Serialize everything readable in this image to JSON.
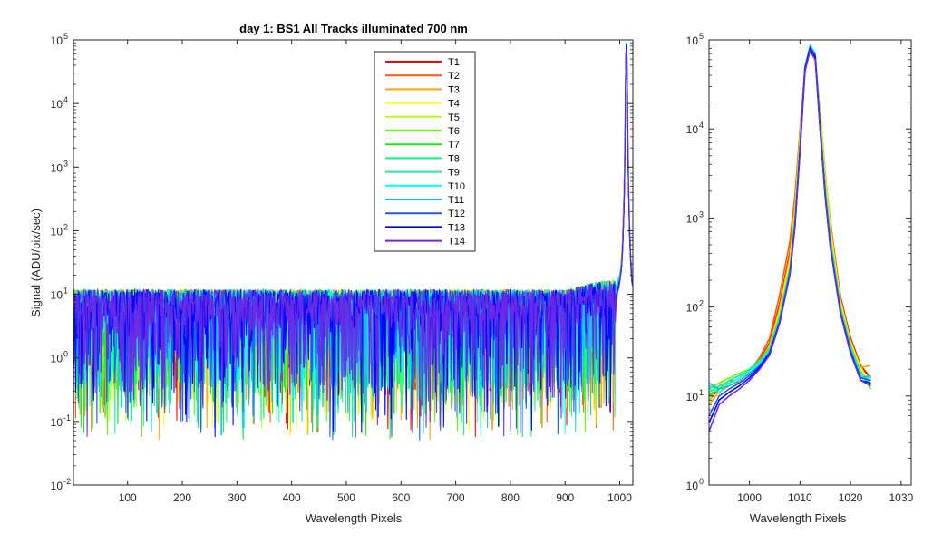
{
  "chart_data": [
    {
      "type": "line",
      "title": "day 1: BS1   All Tracks illuminated   700 nm",
      "xlabel": "Wavelength Pixels",
      "ylabel": "Signal (ADU/pix/sec)",
      "xlim": [
        1,
        1024
      ],
      "xticks": [
        "100",
        "200",
        "300",
        "400",
        "500",
        "600",
        "700",
        "800",
        "900",
        "1000"
      ],
      "ylim": [
        0.01,
        100000
      ],
      "yscale": "log",
      "yticks": [
        {
          "base": "10",
          "exp": "-2"
        },
        {
          "base": "10",
          "exp": "-1"
        },
        {
          "base": "10",
          "exp": "0"
        },
        {
          "base": "10",
          "exp": "1"
        },
        {
          "base": "10",
          "exp": "2"
        },
        {
          "base": "10",
          "exp": "3"
        },
        {
          "base": "10",
          "exp": "4"
        },
        {
          "base": "10",
          "exp": "5"
        }
      ],
      "legend_position": "top-center",
      "noise_region": {
        "x_range": [
          1,
          1000
        ],
        "typical_level": 4,
        "upper_level": 12,
        "lower_dips": 0.05
      },
      "peak": {
        "x": 1012,
        "y": 80000
      }
    },
    {
      "type": "line",
      "title": "",
      "xlabel": "Wavelength Pixels",
      "ylabel": "",
      "xlim": [
        992,
        1032
      ],
      "xticks": [
        "1000",
        "1010",
        "1020",
        "1030"
      ],
      "ylim": [
        1,
        100000
      ],
      "yscale": "log",
      "yticks": [
        {
          "base": "10",
          "exp": "0"
        },
        {
          "base": "10",
          "exp": "1"
        },
        {
          "base": "10",
          "exp": "2"
        },
        {
          "base": "10",
          "exp": "3"
        },
        {
          "base": "10",
          "exp": "4"
        },
        {
          "base": "10",
          "exp": "5"
        }
      ],
      "profile_x": [
        992,
        994,
        996,
        998,
        1000,
        1002,
        1004,
        1006,
        1008,
        1009,
        1010,
        1011,
        1012,
        1013,
        1014,
        1015,
        1016,
        1018,
        1020,
        1022,
        1024
      ],
      "series": [
        {
          "name": "T1",
          "color": "#ff0000",
          "values": [
            9,
            12,
            15,
            14,
            18,
            25,
            40,
            110,
            420,
            1500,
            9000,
            45000,
            75000,
            60000,
            15000,
            3000,
            900,
            130,
            45,
            22,
            16
          ]
        },
        {
          "name": "T2",
          "color": "#ff5a00",
          "values": [
            10,
            13,
            14,
            16,
            19,
            27,
            45,
            140,
            550,
            1800,
            10000,
            48000,
            77000,
            62000,
            13000,
            2500,
            700,
            110,
            40,
            20,
            16
          ]
        },
        {
          "name": "T3",
          "color": "#ffa500",
          "values": [
            8,
            11,
            13,
            15,
            18,
            24,
            38,
            100,
            380,
            1400,
            8500,
            46000,
            78000,
            65000,
            16000,
            3200,
            850,
            120,
            42,
            21,
            22
          ]
        },
        {
          "name": "T4",
          "color": "#ffff00",
          "values": [
            11,
            12,
            14,
            15,
            17,
            23,
            35,
            90,
            330,
            1200,
            8000,
            47000,
            80000,
            66000,
            14000,
            2800,
            750,
            115,
            40,
            20,
            15
          ]
        },
        {
          "name": "T5",
          "color": "#b4ff1e",
          "values": [
            9,
            13,
            15,
            17,
            19,
            24,
            36,
            85,
            300,
            1100,
            7500,
            48000,
            82000,
            67000,
            13000,
            2500,
            650,
            105,
            38,
            19,
            14
          ]
        },
        {
          "name": "T6",
          "color": "#5aff00",
          "values": [
            12,
            14,
            16,
            18,
            20,
            25,
            35,
            80,
            280,
            1000,
            7000,
            49000,
            83000,
            68000,
            12000,
            2200,
            600,
            100,
            37,
            18,
            12
          ]
        },
        {
          "name": "T7",
          "color": "#1ee61e",
          "values": [
            10,
            12,
            15,
            17,
            19,
            24,
            34,
            78,
            270,
            950,
            6800,
            49000,
            84000,
            69000,
            11500,
            2100,
            580,
            98,
            36,
            18,
            13
          ]
        },
        {
          "name": "T8",
          "color": "#00ff82",
          "values": [
            11,
            13,
            14,
            16,
            20,
            25,
            33,
            75,
            260,
            920,
            6500,
            50000,
            85000,
            70000,
            11000,
            2000,
            560,
            96,
            35,
            18,
            14
          ]
        },
        {
          "name": "T9",
          "color": "#1ee6b4",
          "values": [
            13,
            12,
            15,
            17,
            19,
            24,
            33,
            74,
            255,
            900,
            6400,
            50000,
            86000,
            70000,
            10800,
            1950,
            540,
            94,
            34,
            17,
            15
          ]
        },
        {
          "name": "T10",
          "color": "#00ffff",
          "values": [
            12,
            11,
            14,
            16,
            19,
            23,
            32,
            72,
            250,
            880,
            6200,
            51000,
            87000,
            71000,
            10500,
            1900,
            520,
            92,
            34,
            17,
            16
          ]
        },
        {
          "name": "T11",
          "color": "#1eb4ff",
          "values": [
            14,
            12,
            13,
            15,
            18,
            22,
            31,
            70,
            245,
            860,
            6000,
            50000,
            85000,
            69000,
            10200,
            1850,
            500,
            90,
            33,
            16,
            17
          ]
        },
        {
          "name": "T12",
          "color": "#1e5ae6",
          "values": [
            6,
            10,
            12,
            14,
            17,
            22,
            31,
            69,
            240,
            840,
            5900,
            49000,
            82000,
            67000,
            10000,
            1800,
            490,
            88,
            32,
            16,
            15
          ]
        },
        {
          "name": "T13",
          "color": "#0000ff",
          "values": [
            5,
            9,
            11,
            13,
            16,
            21,
            30,
            68,
            235,
            820,
            5800,
            47000,
            79000,
            64000,
            9800,
            1750,
            480,
            86,
            31,
            15,
            14
          ]
        },
        {
          "name": "T14",
          "color": "#6e28e6",
          "values": [
            4,
            8,
            10,
            12,
            15,
            20,
            29,
            66,
            230,
            800,
            5600,
            45000,
            76000,
            61000,
            9500,
            1700,
            470,
            84,
            30,
            15,
            13
          ]
        }
      ]
    }
  ]
}
